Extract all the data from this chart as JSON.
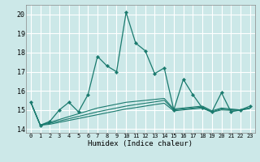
{
  "title": "",
  "xlabel": "Humidex (Indice chaleur)",
  "bg_color": "#cce8e8",
  "grid_color": "#ffffff",
  "line_color": "#1a7a6e",
  "xlim": [
    -0.5,
    23.5
  ],
  "ylim": [
    13.8,
    20.5
  ],
  "xticks": [
    0,
    1,
    2,
    3,
    4,
    5,
    6,
    7,
    8,
    9,
    10,
    11,
    12,
    13,
    14,
    15,
    16,
    17,
    18,
    19,
    20,
    21,
    22,
    23
  ],
  "yticks": [
    14,
    15,
    16,
    17,
    18,
    19,
    20
  ],
  "series1": [
    15.4,
    14.2,
    14.4,
    15.0,
    15.4,
    14.9,
    15.8,
    17.8,
    17.3,
    17.0,
    20.1,
    18.5,
    18.1,
    16.9,
    17.2,
    15.0,
    16.6,
    15.8,
    15.1,
    14.9,
    15.9,
    14.9,
    15.0,
    15.2
  ],
  "series2": [
    15.4,
    14.2,
    14.35,
    14.5,
    14.65,
    14.8,
    14.95,
    15.1,
    15.2,
    15.3,
    15.4,
    15.45,
    15.5,
    15.55,
    15.6,
    15.05,
    15.1,
    15.15,
    15.2,
    14.95,
    15.1,
    15.05,
    15.0,
    15.1
  ],
  "series3": [
    15.4,
    14.2,
    14.3,
    14.42,
    14.54,
    14.66,
    14.78,
    14.9,
    15.0,
    15.1,
    15.2,
    15.28,
    15.35,
    15.42,
    15.5,
    15.0,
    15.05,
    15.1,
    15.15,
    14.9,
    15.05,
    15.0,
    15.0,
    15.1
  ],
  "series4": [
    15.4,
    14.2,
    14.25,
    14.35,
    14.45,
    14.55,
    14.65,
    14.75,
    14.85,
    14.95,
    15.05,
    15.12,
    15.2,
    15.28,
    15.35,
    14.95,
    15.0,
    15.05,
    15.1,
    14.88,
    15.0,
    14.98,
    14.98,
    15.08
  ]
}
